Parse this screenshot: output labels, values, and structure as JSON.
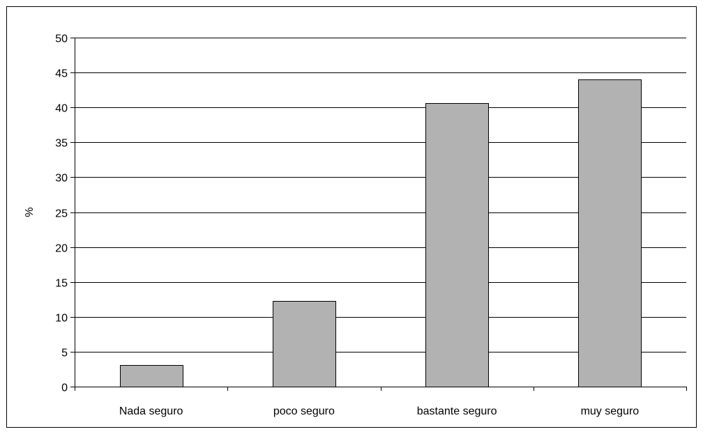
{
  "chart_data": {
    "type": "bar",
    "title": "",
    "xlabel": "",
    "ylabel": "%",
    "ylim": [
      0,
      50
    ],
    "yticks": [
      0,
      5,
      10,
      15,
      20,
      25,
      30,
      35,
      40,
      45,
      50
    ],
    "categories": [
      "Nada seguro",
      "poco seguro",
      "bastante seguro",
      "muy seguro"
    ],
    "values": [
      3.1,
      12.3,
      40.6,
      44.0
    ],
    "grid": true,
    "legend": "none",
    "colors": {
      "bar_fill": "#b2b2b2",
      "bar_stroke": "#000000",
      "grid": "#000000",
      "axis": "#000000",
      "background": "#ffffff"
    }
  }
}
